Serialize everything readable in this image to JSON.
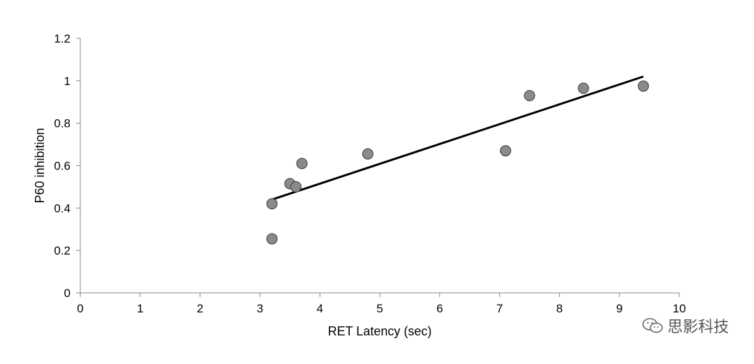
{
  "chart_data": {
    "type": "scatter",
    "title": "",
    "xlabel": "RET Latency (sec)",
    "ylabel": "P60 inhibition",
    "xlim": [
      0,
      10
    ],
    "ylim": [
      0,
      1.2
    ],
    "x_ticks": [
      "0",
      "1",
      "2",
      "3",
      "4",
      "5",
      "6",
      "7",
      "8",
      "9",
      "10"
    ],
    "y_ticks": [
      "0",
      "0.2",
      "0.4",
      "0.6",
      "0.8",
      "1",
      "1.2"
    ],
    "grid": false,
    "legend": "none",
    "series": [
      {
        "points": [
          {
            "x": 3.2,
            "y": 0.255
          },
          {
            "x": 3.2,
            "y": 0.42
          },
          {
            "x": 3.5,
            "y": 0.515
          },
          {
            "x": 3.6,
            "y": 0.5
          },
          {
            "x": 3.7,
            "y": 0.61
          },
          {
            "x": 4.8,
            "y": 0.655
          },
          {
            "x": 7.1,
            "y": 0.67
          },
          {
            "x": 7.5,
            "y": 0.93
          },
          {
            "x": 8.4,
            "y": 0.965
          },
          {
            "x": 9.4,
            "y": 0.975
          }
        ],
        "marker_color": "#8a8a8a"
      }
    ],
    "trendline": {
      "type": "linear",
      "start": {
        "x": 3.2,
        "y": 0.44
      },
      "end": {
        "x": 9.4,
        "y": 1.02
      },
      "color": "#000000"
    }
  },
  "watermark": {
    "text": "思影科技",
    "icon": "wechat-icon"
  }
}
